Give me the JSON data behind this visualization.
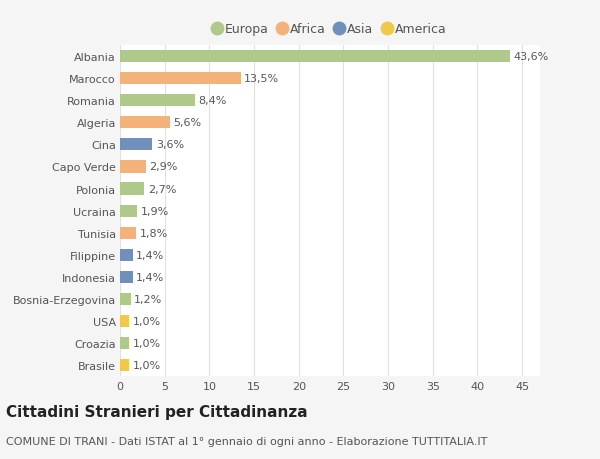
{
  "categories": [
    "Albania",
    "Marocco",
    "Romania",
    "Algeria",
    "Cina",
    "Capo Verde",
    "Polonia",
    "Ucraina",
    "Tunisia",
    "Filippine",
    "Indonesia",
    "Bosnia-Erzegovina",
    "USA",
    "Croazia",
    "Brasile"
  ],
  "values": [
    43.6,
    13.5,
    8.4,
    5.6,
    3.6,
    2.9,
    2.7,
    1.9,
    1.8,
    1.4,
    1.4,
    1.2,
    1.0,
    1.0,
    1.0
  ],
  "labels": [
    "43,6%",
    "13,5%",
    "8,4%",
    "5,6%",
    "3,6%",
    "2,9%",
    "2,7%",
    "1,9%",
    "1,8%",
    "1,4%",
    "1,4%",
    "1,2%",
    "1,0%",
    "1,0%",
    "1,0%"
  ],
  "continents": [
    "Europa",
    "Africa",
    "Europa",
    "Africa",
    "Asia",
    "Africa",
    "Europa",
    "Europa",
    "Africa",
    "Asia",
    "Asia",
    "Europa",
    "America",
    "Europa",
    "America"
  ],
  "continent_colors": {
    "Europa": "#aec98a",
    "Africa": "#f2b27a",
    "Asia": "#7090bb",
    "America": "#f0c84a"
  },
  "legend_order": [
    "Europa",
    "Africa",
    "Asia",
    "America"
  ],
  "title": "Cittadini Stranieri per Cittadinanza",
  "subtitle": "COMUNE DI TRANI - Dati ISTAT al 1° gennaio di ogni anno - Elaborazione TUTTITALIA.IT",
  "xlim": [
    0,
    47
  ],
  "xticks": [
    0,
    5,
    10,
    15,
    20,
    25,
    30,
    35,
    40,
    45
  ],
  "background_color": "#f5f5f5",
  "plot_bg_color": "#ffffff",
  "grid_color": "#e0e0e0",
  "title_fontsize": 11,
  "subtitle_fontsize": 8,
  "label_fontsize": 8,
  "tick_fontsize": 8,
  "legend_fontsize": 9
}
